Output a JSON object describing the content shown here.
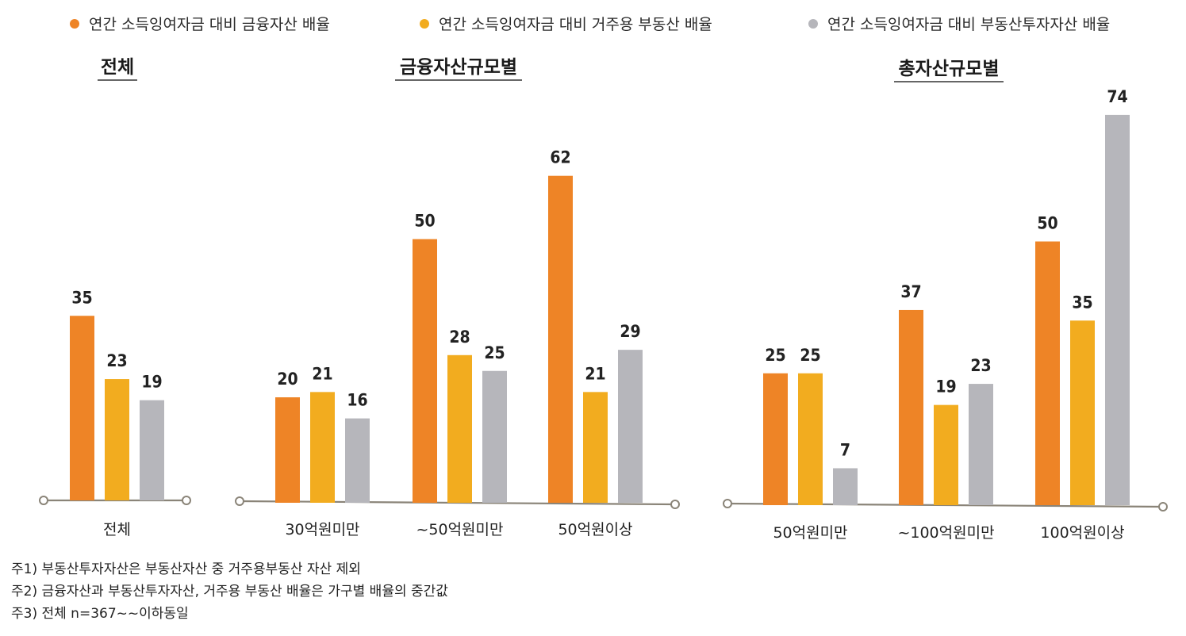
{
  "colors": {
    "financial": "#ee8426",
    "residential": "#f2ac1f",
    "investment": "#b6b6bb",
    "axis": "#8a8478"
  },
  "legend": [
    {
      "label": "연간 소득잉여자금 대비 금융자산 배율",
      "color": "#ee8426"
    },
    {
      "label": "연간 소득잉여자금 대비 거주용 부동산 배율",
      "color": "#f2ac1f"
    },
    {
      "label": "연간 소득잉여자금 대비 부동산투자자산 배율",
      "color": "#b6b6bb"
    }
  ],
  "chart_data": [
    {
      "type": "bar",
      "title": "전체",
      "categories": [
        "전체"
      ],
      "series": [
        {
          "name": "연간 소득잉여자금 대비 금융자산 배율",
          "values": [
            35
          ]
        },
        {
          "name": "연간 소득잉여자금 대비 거주용 부동산 배율",
          "values": [
            23
          ]
        },
        {
          "name": "연간 소득잉여자금 대비 부동산투자자산 배율",
          "values": [
            19
          ]
        }
      ],
      "legend_position": "top"
    },
    {
      "type": "bar",
      "title": "금융자산규모별",
      "categories": [
        "30억원미만",
        "~50억원미만",
        "50억원이상"
      ],
      "series": [
        {
          "name": "연간 소득잉여자금 대비 금융자산 배율",
          "values": [
            20,
            50,
            62
          ]
        },
        {
          "name": "연간 소득잉여자금 대비 거주용 부동산 배율",
          "values": [
            21,
            28,
            21
          ]
        },
        {
          "name": "연간 소득잉여자금 대비 부동산투자자산 배율",
          "values": [
            16,
            25,
            29
          ]
        }
      ],
      "legend_position": "top"
    },
    {
      "type": "bar",
      "title": "총자산규모별",
      "categories": [
        "50억원미만",
        "~100억원미만",
        "100억원이상"
      ],
      "series": [
        {
          "name": "연간 소득잉여자금 대비 금융자산 배율",
          "values": [
            25,
            37,
            50
          ]
        },
        {
          "name": "연간 소득잉여자금 대비 거주용 부동산 배율",
          "values": [
            25,
            19,
            35
          ]
        },
        {
          "name": "연간 소득잉여자금 대비 부동산투자자산 배율",
          "values": [
            7,
            23,
            74
          ]
        }
      ],
      "legend_position": "top"
    }
  ],
  "notes": [
    "주1) 부동산투자자산은 부동산자산 중 거주용부동산 자산 제외",
    "주2) 금융자산과 부동산투자자산, 거주용 부동산 배율은 가구별 배율의 중간값",
    "주3) 전체 n=367~~이하동일"
  ]
}
